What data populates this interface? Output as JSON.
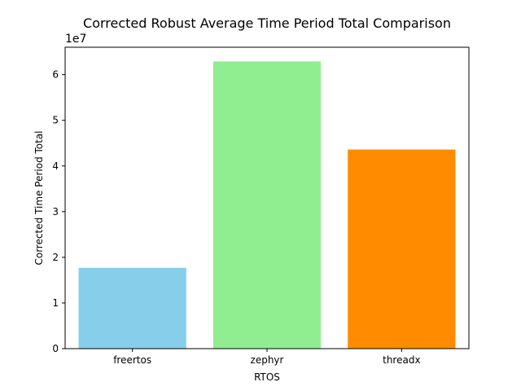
{
  "chart_data": {
    "type": "bar",
    "title": "Corrected Robust Average Time Period Total Comparison",
    "xlabel": "RTOS",
    "ylabel": "Corrected Time Period Total",
    "y_scale_label": "1e7",
    "categories": [
      "freertos",
      "zephyr",
      "threadx"
    ],
    "values": [
      17700000,
      62900000,
      43600000
    ],
    "colors": [
      "#87ceeb",
      "#90ee90",
      "#ff8c00"
    ],
    "ylim": [
      0,
      66000000
    ],
    "yticks": [
      0,
      10000000,
      20000000,
      30000000,
      40000000,
      50000000,
      60000000
    ],
    "ytick_labels": [
      "0",
      "1",
      "2",
      "3",
      "4",
      "5",
      "6"
    ],
    "grid": false,
    "legend": "none"
  }
}
